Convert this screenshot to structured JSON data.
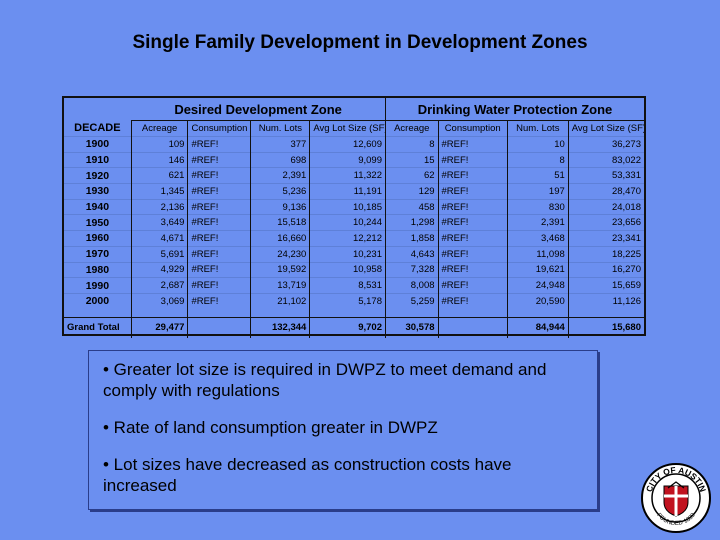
{
  "title": "Single Family Development in Development Zones",
  "table": {
    "group_headers": [
      "Desired Development Zone",
      "Drinking Water Protection Zone"
    ],
    "decade_header": "DECADE",
    "column_headers": [
      "Acreage",
      "Consumption",
      "Num. Lots",
      "Avg Lot Size (SF)",
      "Acreage",
      "Consumption",
      "Num. Lots",
      "Avg Lot Size (SF)"
    ],
    "rows": [
      {
        "decade": "1900",
        "cells": [
          "109",
          "#REF!",
          "377",
          "12,609",
          "8",
          "#REF!",
          "10",
          "36,273"
        ]
      },
      {
        "decade": "1910",
        "cells": [
          "146",
          "#REF!",
          "698",
          "9,099",
          "15",
          "#REF!",
          "8",
          "83,022"
        ]
      },
      {
        "decade": "1920",
        "cells": [
          "621",
          "#REF!",
          "2,391",
          "11,322",
          "62",
          "#REF!",
          "51",
          "53,331"
        ]
      },
      {
        "decade": "1930",
        "cells": [
          "1,345",
          "#REF!",
          "5,236",
          "11,191",
          "129",
          "#REF!",
          "197",
          "28,470"
        ]
      },
      {
        "decade": "1940",
        "cells": [
          "2,136",
          "#REF!",
          "9,136",
          "10,185",
          "458",
          "#REF!",
          "830",
          "24,018"
        ]
      },
      {
        "decade": "1950",
        "cells": [
          "3,649",
          "#REF!",
          "15,518",
          "10,244",
          "1,298",
          "#REF!",
          "2,391",
          "23,656"
        ]
      },
      {
        "decade": "1960",
        "cells": [
          "4,671",
          "#REF!",
          "16,660",
          "12,212",
          "1,858",
          "#REF!",
          "3,468",
          "23,341"
        ]
      },
      {
        "decade": "1970",
        "cells": [
          "5,691",
          "#REF!",
          "24,230",
          "10,231",
          "4,643",
          "#REF!",
          "11,098",
          "18,225"
        ]
      },
      {
        "decade": "1980",
        "cells": [
          "4,929",
          "#REF!",
          "19,592",
          "10,958",
          "7,328",
          "#REF!",
          "19,621",
          "16,270"
        ]
      },
      {
        "decade": "1990",
        "cells": [
          "2,687",
          "#REF!",
          "13,719",
          "8,531",
          "8,008",
          "#REF!",
          "24,948",
          "15,659"
        ]
      },
      {
        "decade": "2000",
        "cells": [
          "3,069",
          "#REF!",
          "21,102",
          "5,178",
          "5,259",
          "#REF!",
          "20,590",
          "11,126"
        ]
      }
    ],
    "total": {
      "label": "Grand Total",
      "cells": [
        "29,477",
        "",
        "132,344",
        "9,702",
        "30,578",
        "",
        "84,944",
        "15,680"
      ]
    }
  },
  "bullets": [
    "• Greater lot size is required in DWPZ to meet demand and comply with regulations",
    "• Rate of land consumption greater in DWPZ",
    "• Lot sizes have decreased as construction costs have increased"
  ],
  "seal": {
    "top_text": "CITY OF AUSTIN",
    "bottom_text": "FOUNDED 1839"
  }
}
